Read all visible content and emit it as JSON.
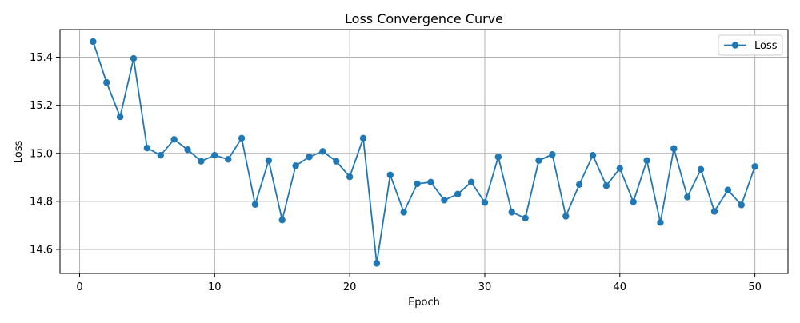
{
  "chart_data": {
    "type": "line",
    "title": "Loss Convergence Curve",
    "xlabel": "Epoch",
    "ylabel": "Loss",
    "xlim": [
      -1.45,
      52.45
    ],
    "ylim": [
      14.5,
      15.515
    ],
    "x_ticks": [
      0,
      10,
      20,
      30,
      40,
      50
    ],
    "y_ticks": [
      14.6,
      14.8,
      15.0,
      15.2,
      15.4
    ],
    "x_tick_labels": [
      "0",
      "10",
      "20",
      "30",
      "40",
      "50"
    ],
    "y_tick_labels": [
      "14.6",
      "14.8",
      "15.0",
      "15.2",
      "15.4"
    ],
    "grid": true,
    "legend": {
      "placement": "top-right",
      "entries": [
        "Loss"
      ]
    },
    "series": [
      {
        "name": "Loss",
        "color": "#1f77b4",
        "marker": "circle",
        "x": [
          1,
          2,
          3,
          4,
          5,
          6,
          7,
          8,
          9,
          10,
          11,
          12,
          13,
          14,
          15,
          16,
          17,
          18,
          19,
          20,
          21,
          22,
          23,
          24,
          25,
          26,
          27,
          28,
          29,
          30,
          31,
          32,
          33,
          34,
          35,
          36,
          37,
          38,
          39,
          40,
          41,
          42,
          43,
          44,
          45,
          46,
          47,
          48,
          49,
          50
        ],
        "values": [
          15.465,
          15.295,
          15.152,
          15.395,
          15.022,
          14.992,
          15.058,
          15.015,
          14.967,
          14.992,
          14.975,
          15.063,
          14.787,
          14.97,
          14.722,
          14.948,
          14.985,
          15.008,
          14.967,
          14.902,
          15.063,
          14.542,
          14.91,
          14.755,
          14.873,
          14.88,
          14.805,
          14.83,
          14.88,
          14.795,
          14.985,
          14.755,
          14.73,
          14.97,
          14.995,
          14.738,
          14.87,
          14.992,
          14.865,
          14.937,
          14.798,
          14.97,
          14.712,
          15.02,
          14.818,
          14.933,
          14.758,
          14.847,
          14.785,
          14.945
        ]
      }
    ]
  }
}
